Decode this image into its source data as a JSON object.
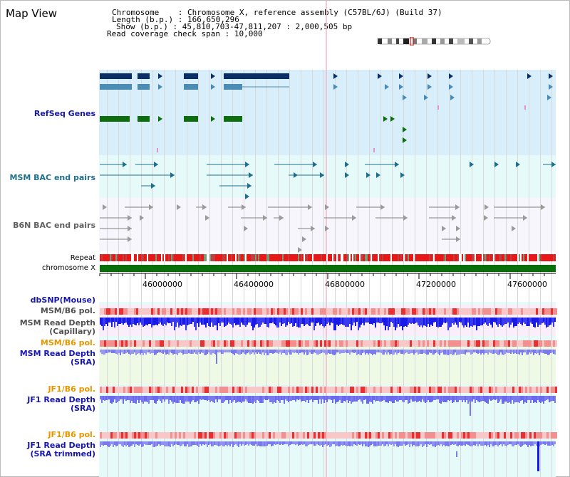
{
  "window": {
    "title": "Map View"
  },
  "header": {
    "chromosome_key": "Chromosome",
    "chromosome_value": "Chromosome X, reference assembly (C57BL/6J) (Build 37)",
    "length_key": "Length (b.p.)",
    "length_value": "166,650,296",
    "show_key": "Show (b.p.)",
    "show_value": "45,810,703-47,811,207 : 2,000,505 bp",
    "coverage_key": "Read coverage check span",
    "coverage_value": "10,000"
  },
  "tracks": {
    "refseq": "RefSeq Genes",
    "msm_bac": "MSM BAC end pairs",
    "b6n_bac": "B6N BAC end pairs",
    "repeat": "Repeat",
    "chromosome": "chromosome X",
    "dbsnp": "dbSNP(Mouse)",
    "msm_b6_pol_1": "MSM/B6 pol.",
    "msm_depth_cap_1": "MSM Read Depth",
    "msm_depth_cap_2": "(Capillary)",
    "msm_b6_pol_2": "MSM/B6 pol.",
    "msm_depth_sra_1": "MSM Read Depth",
    "msm_depth_sra_2": "(SRA)",
    "jf1_b6_pol_1": "JF1/B6 pol.",
    "jf1_depth_sra_1": "JF1 Read Depth",
    "jf1_depth_sra_2": "(SRA)",
    "jf1_b6_pol_2": "JF1/B6 pol.",
    "jf1_depth_trim_1": "JF1 Read Depth",
    "jf1_depth_trim_2": "(SRA trimmed)"
  },
  "axis": {
    "ticks": [
      "46000000",
      "46400000",
      "46800000",
      "47200000",
      "47600000"
    ]
  },
  "colors": {
    "refseq_bg": "#d8eefa",
    "msm_bg": "#e6fafa",
    "b6n_bg": "#f6f6fc",
    "gene_dark": "#0a2f66",
    "gene_light": "#4a8cb4",
    "gene_green": "#0e6e0e",
    "msm_line": "#1e6e8c",
    "b6n_line": "#808080",
    "chromosome_bar": "#0a6e0a",
    "repeat_red": "#e81818",
    "depth_dark": "#1a1ae6",
    "depth_light": "#7a7aee",
    "label_blue": "#1616b0",
    "label_orange": "#e69600",
    "label_grey": "#505050"
  }
}
